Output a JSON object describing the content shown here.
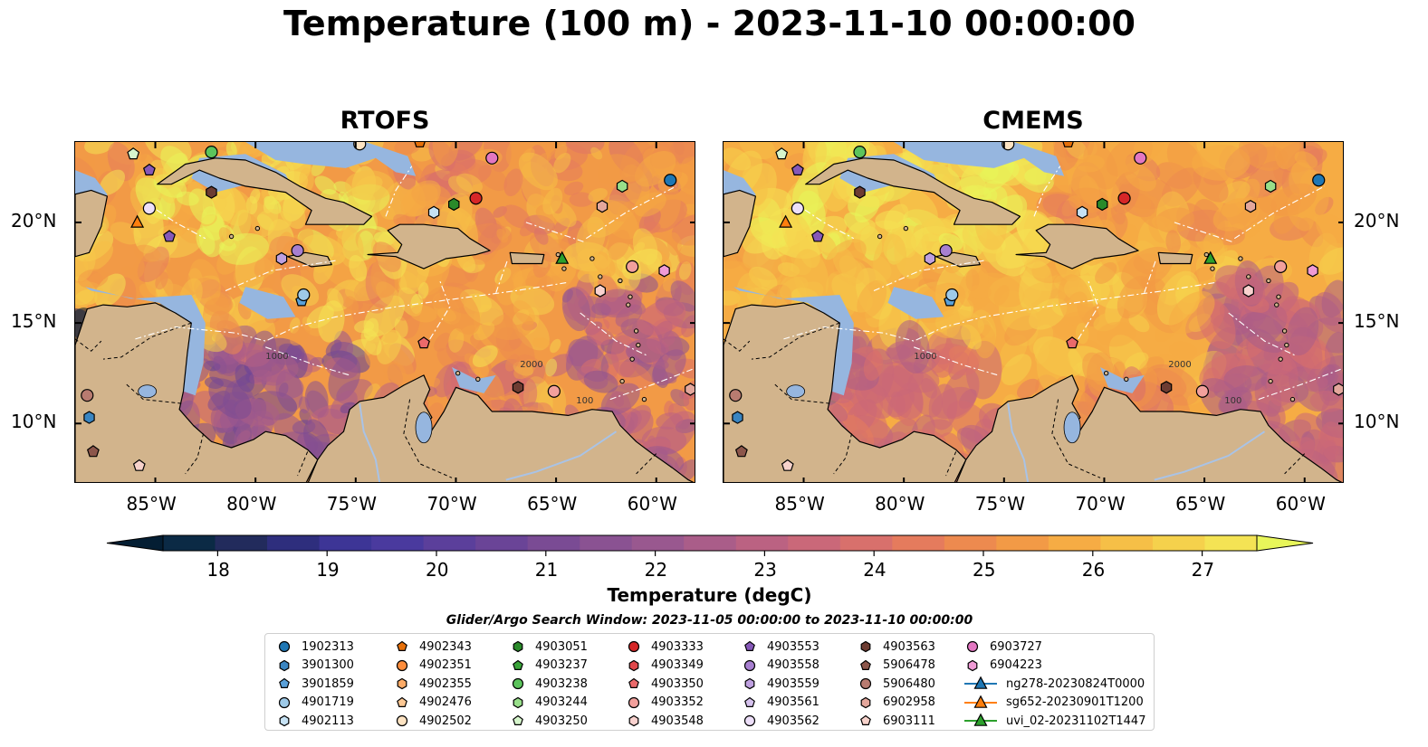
{
  "title": "Temperature (100 m) - 2023-11-10 00:00:00",
  "panels": [
    {
      "title": "RTOFS",
      "variant": "rtofs"
    },
    {
      "title": "CMEMS",
      "variant": "cmems"
    }
  ],
  "map": {
    "extent": {
      "lon_min": -89,
      "lon_max": -58,
      "lat_min": 7,
      "lat_max": 24
    },
    "lon_ticks": [
      {
        "value": -85,
        "label": "85°W"
      },
      {
        "value": -80,
        "label": "80°W"
      },
      {
        "value": -75,
        "label": "75°W"
      },
      {
        "value": -70,
        "label": "70°W"
      },
      {
        "value": -65,
        "label": "65°W"
      },
      {
        "value": -60,
        "label": "60°W"
      }
    ],
    "lat_ticks": [
      {
        "value": 20,
        "label": "20°N"
      },
      {
        "value": 15,
        "label": "15°N"
      },
      {
        "value": 10,
        "label": "10°N"
      }
    ],
    "contour_labels": [
      "100",
      "1000",
      "2000"
    ]
  },
  "colorbar": {
    "min": 17.5,
    "max": 27.5,
    "ticks": [
      "18",
      "19",
      "20",
      "21",
      "22",
      "23",
      "24",
      "25",
      "26",
      "27"
    ],
    "label": "Temperature (degC)",
    "colors": [
      "#041e33",
      "#0b2a45",
      "#222b5c",
      "#2e2e7d",
      "#3d3596",
      "#4a3a9e",
      "#5b3f9b",
      "#6a4497",
      "#7a4b94",
      "#8a5292",
      "#99588f",
      "#aa5d89",
      "#bb6282",
      "#ca6879",
      "#d8706c",
      "#e57b5d",
      "#ed8a4f",
      "#f29a46",
      "#f6ac44",
      "#f6bf47",
      "#f5d14c",
      "#f4e354",
      "#e8f65a"
    ]
  },
  "search_window": "Glider/Argo Search Window: 2023-11-05 00:00:00 to 2023-11-10 00:00:00",
  "legend": [
    {
      "label": "1902313",
      "marker": "circle",
      "color": "#1f77b4"
    },
    {
      "label": "3901300",
      "marker": "hexagon",
      "color": "#3a85c1"
    },
    {
      "label": "3901859",
      "marker": "pentagon",
      "color": "#5aa0d8"
    },
    {
      "label": "4901719",
      "marker": "circle",
      "color": "#9ecae8"
    },
    {
      "label": "4902113",
      "marker": "hexagon",
      "color": "#c6e2f4"
    },
    {
      "label": "4902343",
      "marker": "pentagon",
      "color": "#e6700a"
    },
    {
      "label": "4902351",
      "marker": "circle",
      "color": "#fd8d3c"
    },
    {
      "label": "4902355",
      "marker": "hexagon",
      "color": "#fdab67"
    },
    {
      "label": "4902476",
      "marker": "pentagon",
      "color": "#fdc894"
    },
    {
      "label": "4902502",
      "marker": "circle",
      "color": "#fde3c2"
    },
    {
      "label": "4903051",
      "marker": "hexagon",
      "color": "#2a8a2a"
    },
    {
      "label": "4903237",
      "marker": "pentagon",
      "color": "#39a339"
    },
    {
      "label": "4903238",
      "marker": "circle",
      "color": "#5cc45c"
    },
    {
      "label": "4903244",
      "marker": "hexagon",
      "color": "#98df8a"
    },
    {
      "label": "4903250",
      "marker": "pentagon",
      "color": "#d6f5cc"
    },
    {
      "label": "4903333",
      "marker": "circle",
      "color": "#d62728"
    },
    {
      "label": "4903349",
      "marker": "hexagon",
      "color": "#e0474a"
    },
    {
      "label": "4903350",
      "marker": "pentagon",
      "color": "#ea6a6b"
    },
    {
      "label": "4903352",
      "marker": "circle",
      "color": "#f2a09c"
    },
    {
      "label": "4903548",
      "marker": "hexagon",
      "color": "#f9d2cf"
    },
    {
      "label": "4903553",
      "marker": "pentagon",
      "color": "#8658b8"
    },
    {
      "label": "4903558",
      "marker": "circle",
      "color": "#a77fd0"
    },
    {
      "label": "4903559",
      "marker": "hexagon",
      "color": "#bfa0e0"
    },
    {
      "label": "4903561",
      "marker": "pentagon",
      "color": "#d6c2ee"
    },
    {
      "label": "4903562",
      "marker": "circle",
      "color": "#eddff9"
    },
    {
      "label": "4903563",
      "marker": "hexagon",
      "color": "#6d3c32"
    },
    {
      "label": "5906478",
      "marker": "pentagon",
      "color": "#8c564b"
    },
    {
      "label": "5906480",
      "marker": "circle",
      "color": "#b87b70"
    },
    {
      "label": "6902958",
      "marker": "hexagon",
      "color": "#e4a79c"
    },
    {
      "label": "6903111",
      "marker": "pentagon",
      "color": "#f7d2cb"
    },
    {
      "label": "6903727",
      "marker": "circle",
      "color": "#e377c2"
    },
    {
      "label": "6904223",
      "marker": "hexagon",
      "color": "#f09bd6"
    },
    {
      "label": "ng278-20230824T0000",
      "marker": "triangle-line",
      "color": "#1f77b4"
    },
    {
      "label": "sg652-20230901T1200",
      "marker": "triangle-line",
      "color": "#ff7f0e"
    },
    {
      "label": "uvi_02-20231102T1447",
      "marker": "triangle-line",
      "color": "#2ca02c"
    }
  ],
  "points": [
    {
      "id": "1902313",
      "lon": -59.3,
      "lat": 22.1
    },
    {
      "id": "3901300",
      "lon": -88.3,
      "lat": 10.3
    },
    {
      "id": "3901859",
      "lon": -77.7,
      "lat": 16.1
    },
    {
      "id": "4901719",
      "lon": -77.6,
      "lat": 16.4
    },
    {
      "id": "4902113",
      "lon": -71.1,
      "lat": 20.5
    },
    {
      "id": "4902343",
      "lon": -71.8,
      "lat": 24.0
    },
    {
      "id": "4902502",
      "lon": -74.8,
      "lat": 23.9
    },
    {
      "id": "4903051",
      "lon": -70.1,
      "lat": 20.9
    },
    {
      "id": "4903238",
      "lon": -82.2,
      "lat": 23.5
    },
    {
      "id": "4903244",
      "lon": -61.7,
      "lat": 21.8
    },
    {
      "id": "4903250",
      "lon": -86.1,
      "lat": 23.4
    },
    {
      "id": "4903333",
      "lon": -69.0,
      "lat": 21.2
    },
    {
      "id": "4903350",
      "lon": -71.6,
      "lat": 14.0
    },
    {
      "id": "4903352",
      "lon": -65.1,
      "lat": 11.6
    },
    {
      "id": "4903352",
      "lon": -61.2,
      "lat": 17.8
    },
    {
      "id": "4903548",
      "lon": -62.8,
      "lat": 16.6
    },
    {
      "id": "4903553",
      "lon": -84.3,
      "lat": 19.3
    },
    {
      "id": "4903553",
      "lon": -85.3,
      "lat": 22.6
    },
    {
      "id": "4903558",
      "lon": -77.9,
      "lat": 18.6
    },
    {
      "id": "4903559",
      "lon": -78.7,
      "lat": 18.2
    },
    {
      "id": "4903562",
      "lon": -85.3,
      "lat": 20.7
    },
    {
      "id": "4903563",
      "lon": -82.2,
      "lat": 21.5
    },
    {
      "id": "4903563",
      "lon": -66.9,
      "lat": 11.8
    },
    {
      "id": "5906478",
      "lon": -88.1,
      "lat": 8.6
    },
    {
      "id": "5906480",
      "lon": -88.4,
      "lat": 11.4
    },
    {
      "id": "6902958",
      "lon": -62.7,
      "lat": 20.8
    },
    {
      "id": "6902958",
      "lon": -58.3,
      "lat": 11.7
    },
    {
      "id": "6903111",
      "lon": -85.8,
      "lat": 7.9
    },
    {
      "id": "6903727",
      "lon": -68.2,
      "lat": 23.2
    },
    {
      "id": "6904223",
      "lon": -59.6,
      "lat": 17.6
    },
    {
      "id": "sg652-20230901T1200",
      "lon": -85.9,
      "lat": 20.0
    },
    {
      "id": "uvi_02-20231102T1447",
      "lon": -64.7,
      "lat": 18.2
    }
  ]
}
